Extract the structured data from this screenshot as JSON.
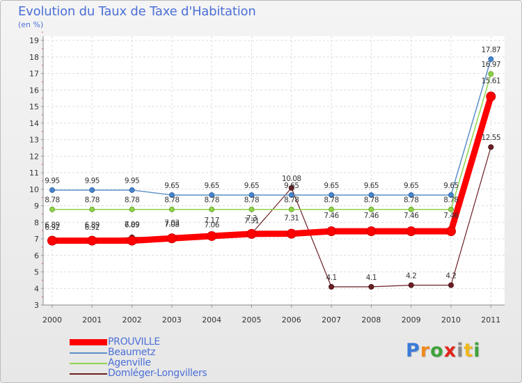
{
  "chart_data": {
    "type": "line",
    "title": "Evolution du Taux de Taxe d'Habitation",
    "subtitle": "(en %)",
    "xlabel": "",
    "ylabel": "(en %)",
    "ylim": [
      3,
      19
    ],
    "yticks": [
      "3",
      "4",
      "5",
      "6",
      "7",
      "8",
      "9",
      "10",
      "11",
      "12",
      "13",
      "14",
      "15",
      "16",
      "17",
      "18",
      "19"
    ],
    "categories": [
      "2000",
      "2001",
      "2002",
      "2003",
      "2004",
      "2005",
      "2006",
      "2007",
      "2008",
      "2009",
      "2010",
      "2011"
    ],
    "series": [
      {
        "name": "Domléger-Longvillers",
        "color": "#6b1f24",
        "values": [
          6.92,
          6.92,
          7.09,
          7.08,
          7.06,
          7.31,
          10.08,
          4.1,
          4.1,
          4.2,
          4.2,
          12.55
        ],
        "labels": [
          "6.92",
          "6.92",
          "7.09",
          "7.08",
          "7.06",
          "7.31",
          "10.08",
          "4.1",
          "4.1",
          "4.2",
          "4.2",
          "12.55"
        ]
      },
      {
        "name": "Agenville",
        "color": "#8fd34a",
        "values": [
          8.78,
          8.78,
          8.78,
          8.78,
          8.78,
          8.78,
          8.78,
          8.78,
          8.78,
          8.78,
          8.78,
          16.97
        ],
        "labels": [
          "8.78",
          "8.78",
          "8.78",
          "8.78",
          "8.78",
          "8.78",
          "8.78",
          "8.78",
          "8.78",
          "8.78",
          "8.78",
          "16.97"
        ]
      },
      {
        "name": "Beaumetz",
        "color": "#5a8fc8",
        "values": [
          9.95,
          9.95,
          9.95,
          9.65,
          9.65,
          9.65,
          9.65,
          9.65,
          9.65,
          9.65,
          9.65,
          17.87
        ],
        "labels": [
          "9.95",
          "9.95",
          "9.95",
          "9.65",
          "9.65",
          "9.65",
          "9.65",
          "9.65",
          "9.65",
          "9.65",
          "9.65",
          "17.87"
        ]
      },
      {
        "name": "PROUVILLE",
        "color": "#ff0000",
        "values": [
          6.89,
          6.89,
          6.89,
          7.03,
          7.17,
          7.3,
          7.31,
          7.46,
          7.46,
          7.46,
          7.46,
          15.61
        ],
        "labels": [
          "6.89",
          "6.89",
          "6.89",
          "7.03",
          "7.17",
          "7.3",
          "7.31",
          "7.46",
          "7.46",
          "7.46",
          "7.46",
          "15.61"
        ]
      }
    ],
    "legend": [
      "PROUVILLE",
      "Beaumetz",
      "Agenville",
      "Domléger-Longvillers"
    ]
  },
  "logo": {
    "text": "Proxiti",
    "letters": [
      "P",
      "r",
      "o",
      "x",
      "i",
      "t",
      "i"
    ]
  }
}
